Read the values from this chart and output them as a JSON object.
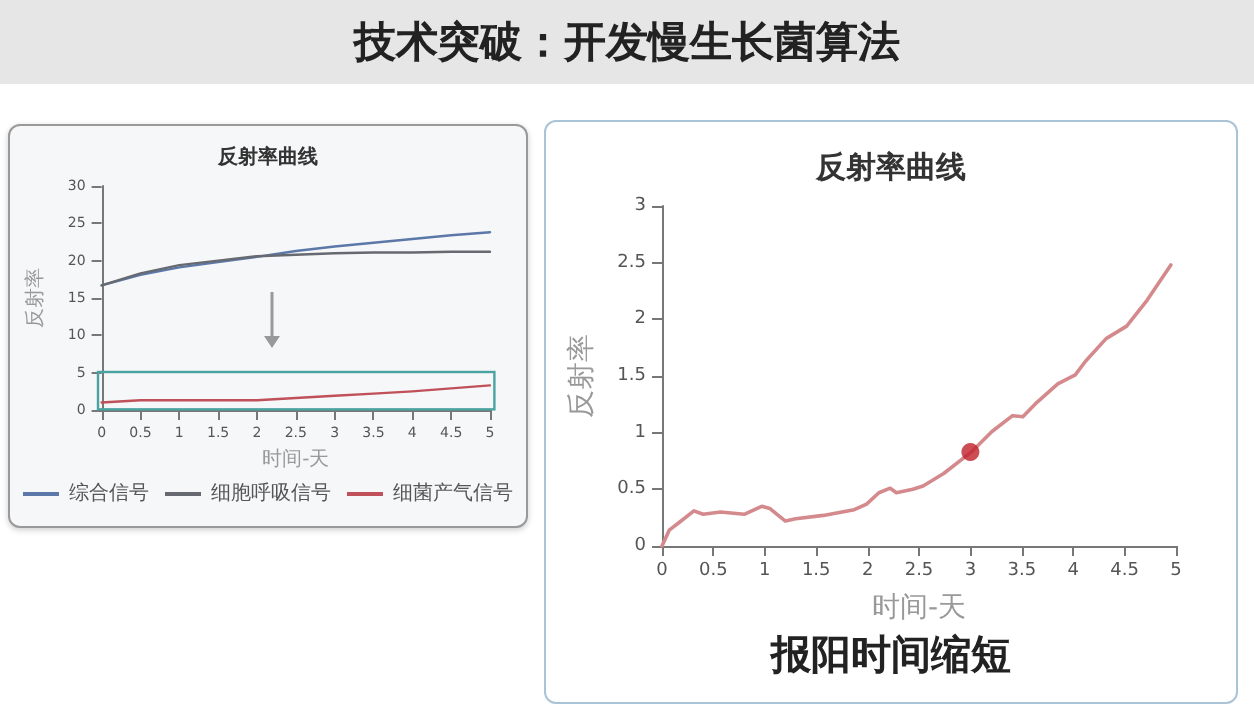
{
  "chart_data": [
    {
      "type": "line",
      "title": "反射率曲线",
      "xlabel": "时间-天",
      "ylabel": "反射率",
      "annotations": [
        "技术突破：开发慢生长菌算法"
      ],
      "x": [
        0,
        0.5,
        1,
        1.5,
        2,
        2.5,
        3,
        3.5,
        4,
        4.5,
        5
      ],
      "series": [
        {
          "name": "综合信号",
          "color": "#5b78a8",
          "values": [
            16.7,
            18.1,
            19.1,
            19.8,
            20.5,
            21.3,
            21.9,
            22.4,
            22.9,
            23.4,
            23.8
          ]
        },
        {
          "name": "细胞呼吸信号",
          "color": "#666a70",
          "values": [
            16.7,
            18.3,
            19.4,
            20.0,
            20.6,
            20.8,
            21.0,
            21.1,
            21.1,
            21.2,
            21.2
          ]
        },
        {
          "name": "细菌产气信号",
          "color": "#c0505a",
          "values": [
            1.0,
            1.3,
            1.3,
            1.3,
            1.3,
            1.6,
            1.9,
            2.2,
            2.5,
            2.9,
            3.3
          ]
        }
      ],
      "xlim": [
        0,
        5
      ],
      "xticks": [
        0,
        0.5,
        1,
        1.5,
        2,
        2.5,
        3,
        3.5,
        4,
        4.5,
        5
      ],
      "ylim": [
        0,
        30
      ],
      "yticks": [
        0,
        5,
        10,
        15,
        20,
        25,
        30
      ],
      "grid": false,
      "legend": "bottom",
      "marker": "none"
    },
    {
      "type": "line",
      "title": "反射率曲线",
      "xlabel": "时间-天",
      "ylabel": "反射率",
      "annotations": [
        "报阳时间缩短"
      ],
      "series": [
        {
          "color": "#d48a8c",
          "x": [
            0,
            0.07,
            0.17,
            0.31,
            0.4,
            0.57,
            0.8,
            0.97,
            1.05,
            1.2,
            1.3,
            1.57,
            1.87,
            1.99,
            2.11,
            2.22,
            2.28,
            2.44,
            2.54,
            2.74,
            3.01,
            3.21,
            3.41,
            3.51,
            3.65,
            3.85,
            4.02,
            4.12,
            4.32,
            4.52,
            4.72,
            4.95
          ],
          "values": [
            0,
            0.14,
            0.21,
            0.31,
            0.28,
            0.3,
            0.28,
            0.35,
            0.33,
            0.22,
            0.24,
            0.27,
            0.32,
            0.37,
            0.47,
            0.51,
            0.47,
            0.5,
            0.53,
            0.64,
            0.83,
            1.01,
            1.15,
            1.14,
            1.27,
            1.43,
            1.51,
            1.63,
            1.83,
            1.94,
            2.17,
            2.48
          ]
        },
        {
          "type": "scatter",
          "color": "#c0202a",
          "marker": "circle",
          "x": [
            3
          ],
          "values": [
            0.83
          ]
        }
      ],
      "xlim": [
        0,
        5
      ],
      "xticks": [
        0,
        0.5,
        1,
        1.5,
        2,
        2.5,
        3,
        3.5,
        4,
        4.5,
        5
      ],
      "ylim": [
        0,
        3
      ],
      "yticks": [
        0,
        0.5,
        1,
        1.5,
        2,
        2.5,
        3
      ],
      "grid": false,
      "legend": false,
      "marker": "none"
    }
  ]
}
